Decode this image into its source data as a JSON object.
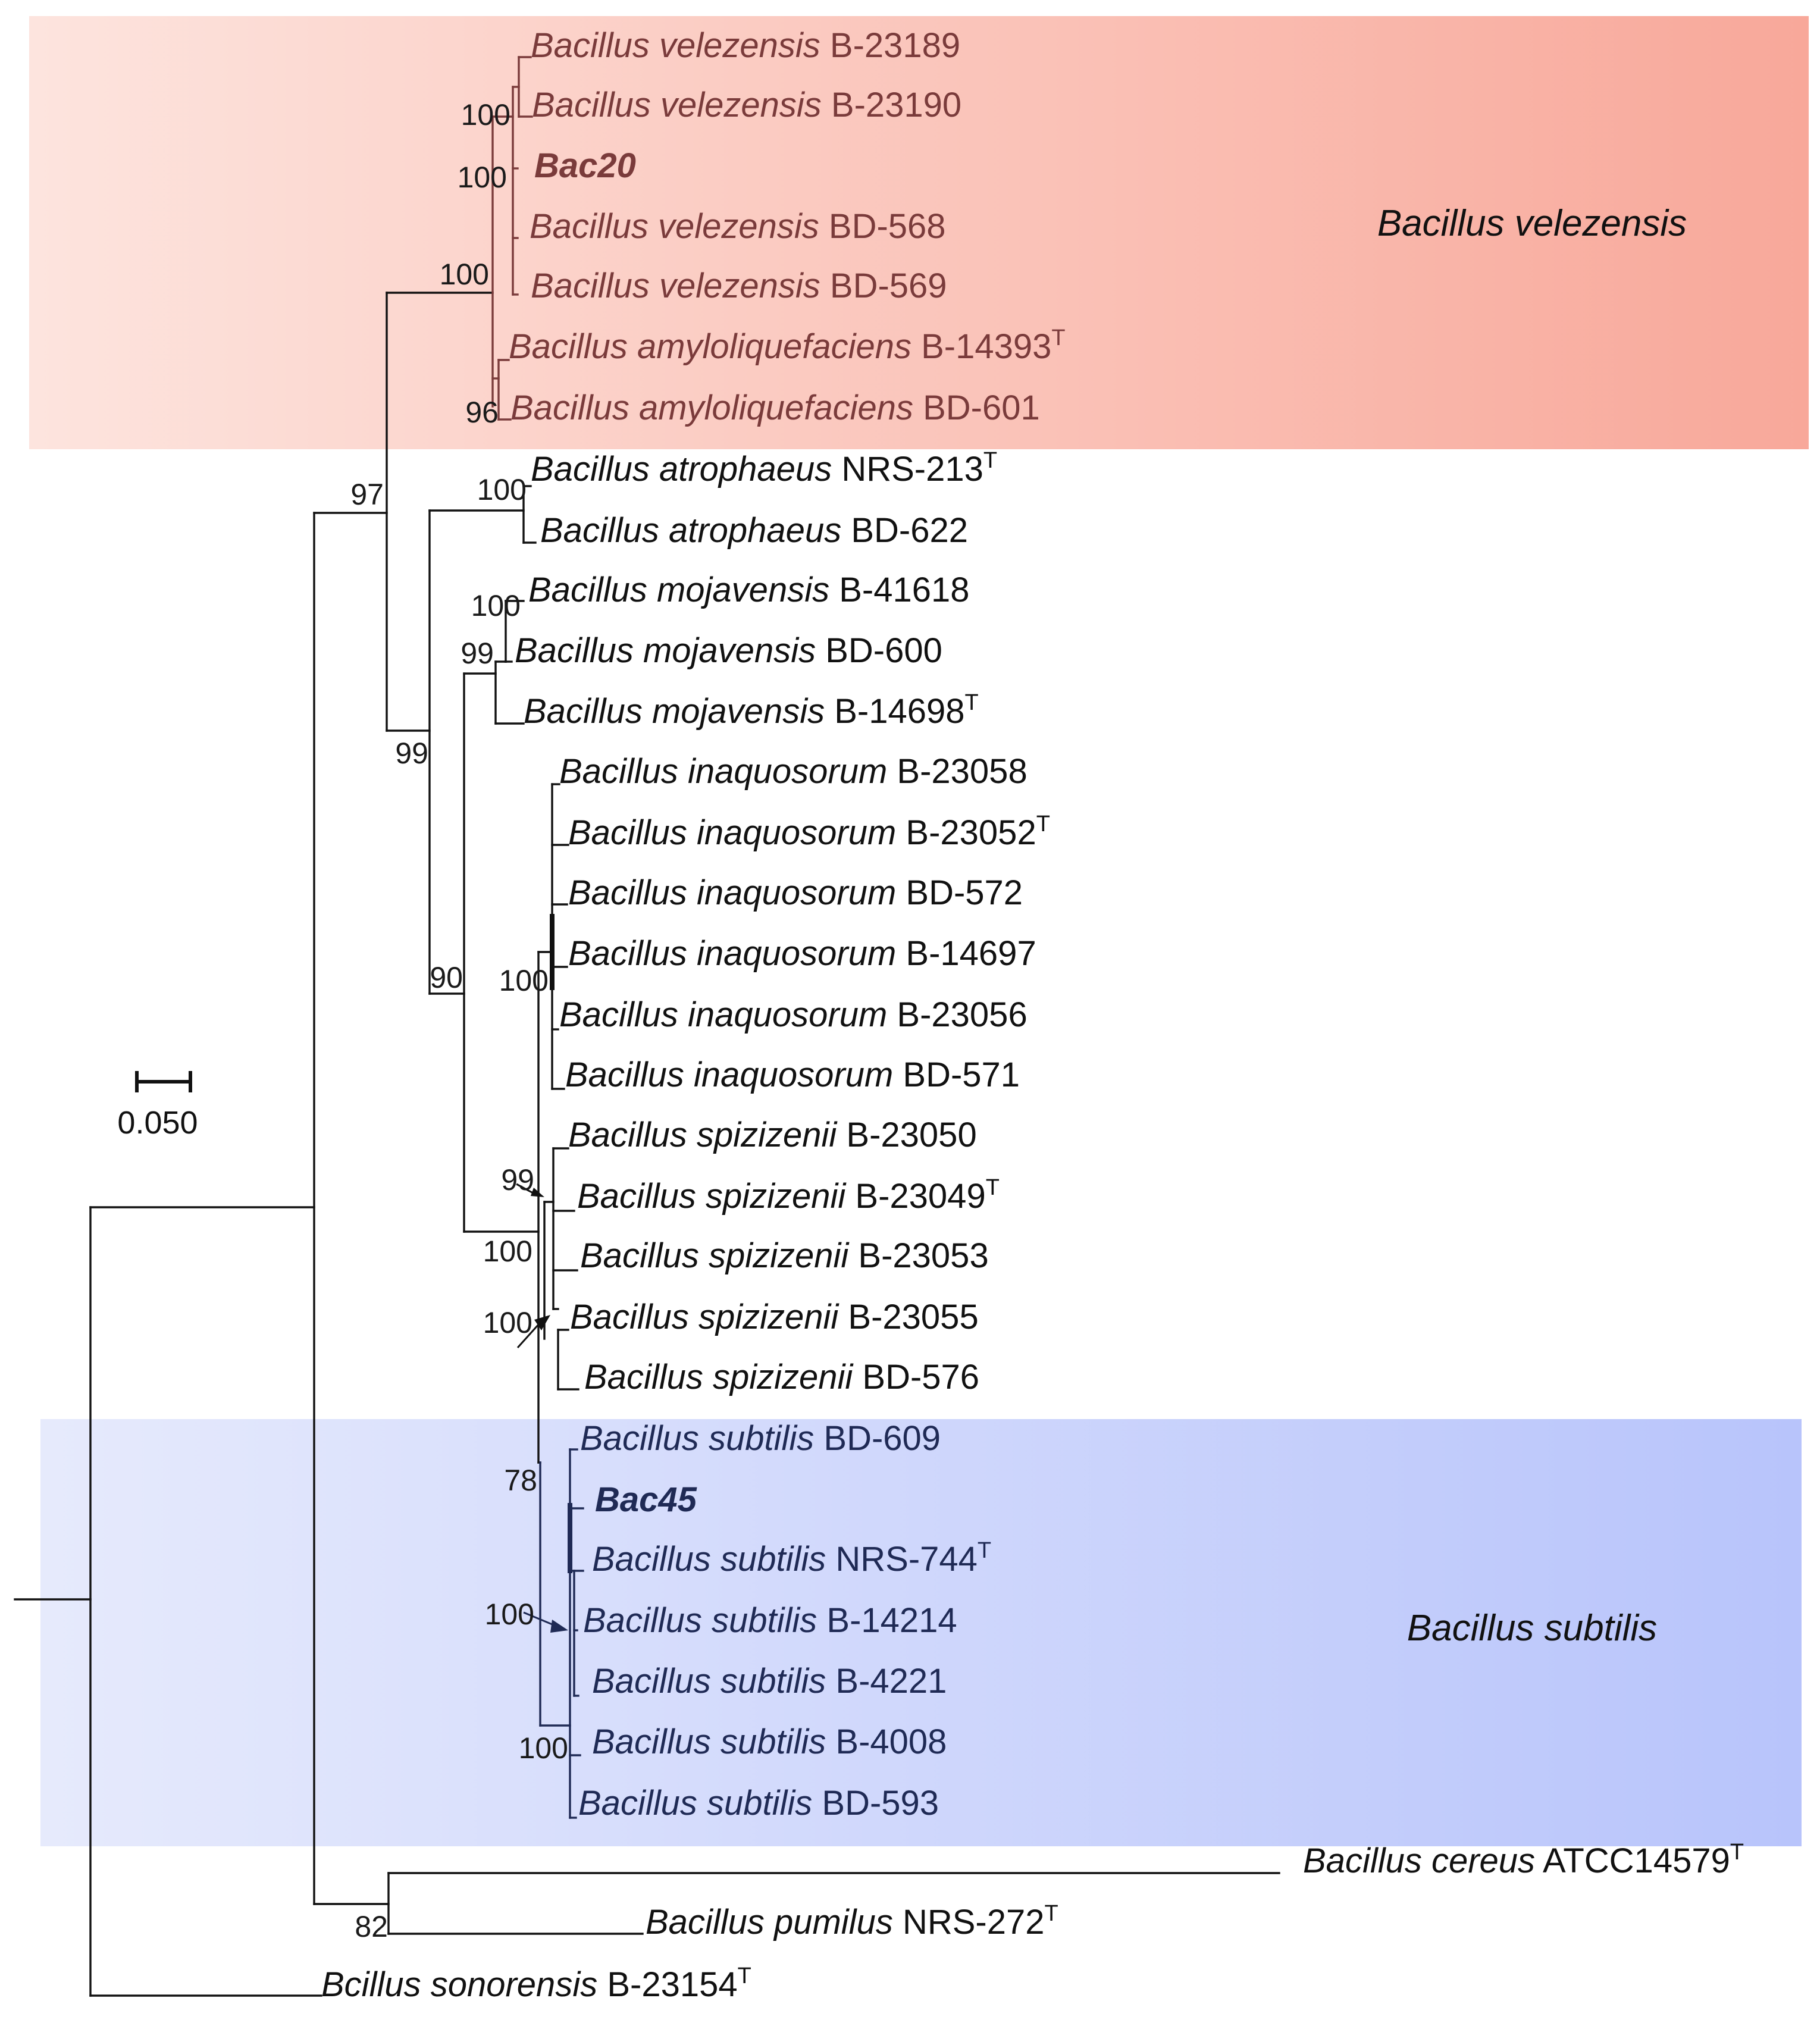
{
  "figure": {
    "type": "phylogenetic-tree",
    "scale_bar_label": "0.050"
  },
  "clades": {
    "velezensis": {
      "label": "Bacillus velezensis",
      "color_start": "#fde4de",
      "color_end": "#f8a89a",
      "text_color": "#7a3b3b"
    },
    "subtilis": {
      "label": "Bacillus subtilis",
      "color_start": "#e6eafc",
      "color_end": "#b8c4fb",
      "text_color": "#1f2a55"
    }
  },
  "taxa": [
    {
      "genus": "Bacillus",
      "species": "velezensis",
      "strain": "B-23189",
      "clade": "velezensis"
    },
    {
      "genus": "Bacillus",
      "species": "velezensis",
      "strain": "B-23190",
      "clade": "velezensis"
    },
    {
      "isolate": "Bac20",
      "clade": "velezensis"
    },
    {
      "genus": "Bacillus",
      "species": "velezensis",
      "strain": "BD-568",
      "clade": "velezensis"
    },
    {
      "genus": "Bacillus",
      "species": "velezensis",
      "strain": "BD-569",
      "clade": "velezensis"
    },
    {
      "genus": "Bacillus",
      "species": "amyloliquefaciens",
      "strain": "B-14393",
      "type_strain": "T",
      "clade": "velezensis"
    },
    {
      "genus": "Bacillus",
      "species": "amyloliquefaciens",
      "strain": "BD-601",
      "clade": "velezensis"
    },
    {
      "genus": "Bacillus",
      "species": "atrophaeus",
      "strain": "NRS-213",
      "type_strain": "T"
    },
    {
      "genus": "Bacillus",
      "species": "atrophaeus",
      "strain": "BD-622"
    },
    {
      "genus": "Bacillus",
      "species": "mojavensis",
      "strain": "B-41618"
    },
    {
      "genus": "Bacillus",
      "species": "mojavensis",
      "strain": "BD-600"
    },
    {
      "genus": "Bacillus",
      "species": "mojavensis",
      "strain": "B-14698",
      "type_strain": "T"
    },
    {
      "genus": "Bacillus",
      "species": "inaquosorum",
      "strain": "B-23058"
    },
    {
      "genus": "Bacillus",
      "species": "inaquosorum",
      "strain": "B-23052",
      "type_strain": "T"
    },
    {
      "genus": "Bacillus",
      "species": "inaquosorum",
      "strain": "BD-572"
    },
    {
      "genus": "Bacillus",
      "species": "inaquosorum",
      "strain": "B-14697"
    },
    {
      "genus": "Bacillus",
      "species": "inaquosorum",
      "strain": "B-23056"
    },
    {
      "genus": "Bacillus",
      "species": "inaquosorum",
      "strain": "BD-571"
    },
    {
      "genus": "Bacillus",
      "species": "spizizenii",
      "strain": "B-23050"
    },
    {
      "genus": "Bacillus",
      "species": "spizizenii",
      "strain": "B-23049",
      "type_strain": "T"
    },
    {
      "genus": "Bacillus",
      "species": "spizizenii",
      "strain": "B-23053"
    },
    {
      "genus": "Bacillus",
      "species": "spizizenii",
      "strain": "B-23055"
    },
    {
      "genus": "Bacillus",
      "species": "spizizenii",
      "strain": "BD-576"
    },
    {
      "genus": "Bacillus",
      "species": "subtilis",
      "strain": "BD-609",
      "clade": "subtilis"
    },
    {
      "isolate": "Bac45",
      "clade": "subtilis"
    },
    {
      "genus": "Bacillus",
      "species": "subtilis",
      "strain": "NRS-744",
      "type_strain": "T",
      "clade": "subtilis"
    },
    {
      "genus": "Bacillus",
      "species": "subtilis",
      "strain": "B-14214",
      "clade": "subtilis"
    },
    {
      "genus": "Bacillus",
      "species": "subtilis",
      "strain": "B-4221",
      "clade": "subtilis"
    },
    {
      "genus": "Bacillus",
      "species": "subtilis",
      "strain": "B-4008",
      "clade": "subtilis"
    },
    {
      "genus": "Bacillus",
      "species": "subtilis",
      "strain": "BD-593",
      "clade": "subtilis"
    },
    {
      "genus": "Bacillus",
      "species": "cereus",
      "strain": "ATCC14579",
      "type_strain": "T"
    },
    {
      "genus": "Bacillus",
      "species": "pumilus",
      "strain": "NRS-272",
      "type_strain": "T"
    },
    {
      "genus": "Bcillus",
      "species": "sonorensis",
      "strain": "B-23154",
      "type_strain": "T"
    }
  ],
  "bootstrap": [
    "100",
    "100",
    "100",
    "96",
    "97",
    "100",
    "99",
    "100",
    "99",
    "90",
    "100",
    "99",
    "100",
    "100",
    "78",
    "100",
    "100",
    "82"
  ]
}
